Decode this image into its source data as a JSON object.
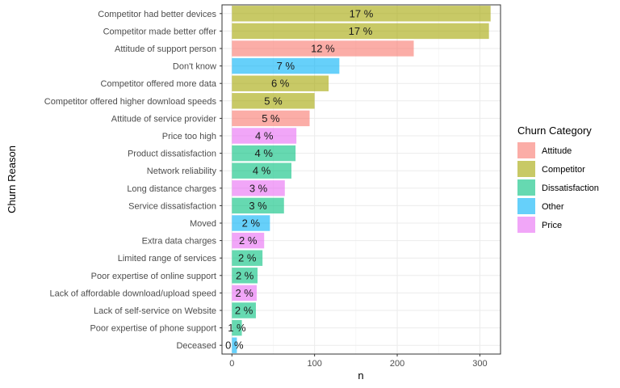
{
  "chart_data": {
    "type": "bar",
    "orientation": "horizontal",
    "xlabel": "n",
    "ylabel": "Churn Reason",
    "xlim": [
      -12,
      325
    ],
    "x_ticks": [
      0,
      100,
      200,
      300
    ],
    "grid": true,
    "legend": {
      "title": "Churn Category",
      "position": "right",
      "entries": [
        {
          "name": "Attitude",
          "color": "#F8766D"
        },
        {
          "name": "Competitor",
          "color": "#A3A500"
        },
        {
          "name": "Dissatisfaction",
          "color": "#00BF7D"
        },
        {
          "name": "Other",
          "color": "#00B0F6"
        },
        {
          "name": "Price",
          "color": "#E76BF3"
        }
      ]
    },
    "bars": [
      {
        "category": "Competitor had better devices",
        "value": 313,
        "group": "Competitor",
        "label": "17 %"
      },
      {
        "category": "Competitor made better offer",
        "value": 311,
        "group": "Competitor",
        "label": "17 %"
      },
      {
        "category": "Attitude of support person",
        "value": 220,
        "group": "Attitude",
        "label": "12 %"
      },
      {
        "category": "Don't know",
        "value": 130,
        "group": "Other",
        "label": "7 %"
      },
      {
        "category": "Competitor offered more data",
        "value": 117,
        "group": "Competitor",
        "label": "6 %"
      },
      {
        "category": "Competitor offered higher download speeds",
        "value": 100,
        "group": "Competitor",
        "label": "5 %"
      },
      {
        "category": "Attitude of service provider",
        "value": 94,
        "group": "Attitude",
        "label": "5 %"
      },
      {
        "category": "Price too high",
        "value": 78,
        "group": "Price",
        "label": "4 %"
      },
      {
        "category": "Product dissatisfaction",
        "value": 77,
        "group": "Dissatisfaction",
        "label": "4 %"
      },
      {
        "category": "Network reliability",
        "value": 72,
        "group": "Dissatisfaction",
        "label": "4 %"
      },
      {
        "category": "Long distance charges",
        "value": 64,
        "group": "Price",
        "label": "3 %"
      },
      {
        "category": "Service dissatisfaction",
        "value": 63,
        "group": "Dissatisfaction",
        "label": "3 %"
      },
      {
        "category": "Moved",
        "value": 46,
        "group": "Other",
        "label": "2 %"
      },
      {
        "category": "Extra data charges",
        "value": 39,
        "group": "Price",
        "label": "2 %"
      },
      {
        "category": "Limited range of services",
        "value": 37,
        "group": "Dissatisfaction",
        "label": "2 %"
      },
      {
        "category": "Poor expertise of online support",
        "value": 31,
        "group": "Dissatisfaction",
        "label": "2 %"
      },
      {
        "category": "Lack of affordable download/upload speed",
        "value": 30,
        "group": "Price",
        "label": "2 %"
      },
      {
        "category": "Lack of self-service on Website",
        "value": 29,
        "group": "Dissatisfaction",
        "label": "2 %"
      },
      {
        "category": "Poor expertise of phone support",
        "value": 12,
        "group": "Dissatisfaction",
        "label": "1 %"
      },
      {
        "category": "Deceased",
        "value": 6,
        "group": "Other",
        "label": "0 %"
      }
    ]
  }
}
